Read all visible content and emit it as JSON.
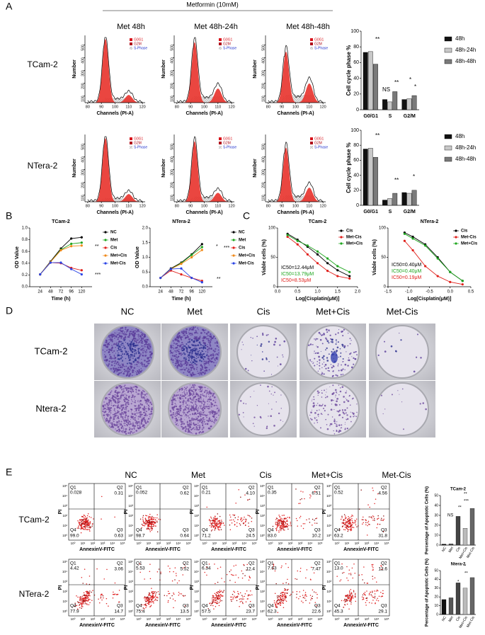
{
  "panel_labels": [
    "A",
    "B",
    "C",
    "D",
    "E"
  ],
  "panel_a": {
    "treatment": "Metformin (10mM)",
    "columns": [
      "Met 48h",
      "Met 48h-24h",
      "Met 48h-48h"
    ],
    "rows": [
      "TCam-2",
      "NTera-2"
    ],
    "histogram": {
      "y_label": "Number",
      "x_label": "Channels (PI-A)",
      "xticks": [
        80,
        90,
        100,
        110,
        120
      ],
      "yticks": [
        100,
        200,
        300,
        400,
        500
      ],
      "legend": [
        {
          "name": "G0G1",
          "color": "#d8141c"
        },
        {
          "name": "G2M",
          "color": "#b0101c"
        },
        {
          "name": "S-Phase",
          "color": "#2233cc"
        }
      ]
    }
  },
  "chart_data": [
    {
      "type": "bar",
      "categories": [
        "G0/G1",
        "S",
        "G2/M"
      ],
      "y_label": "Cell cycle phase %",
      "ylim": [
        0,
        100
      ],
      "yticks": [
        0,
        20,
        40,
        60,
        80,
        100
      ],
      "series": [
        {
          "name": "48h",
          "color": "#111111",
          "values": [
            73,
            13,
            13
          ]
        },
        {
          "name": "48h-24h",
          "color": "#c8c8c8",
          "values": [
            74,
            10,
            14
          ]
        },
        {
          "name": "48h-48h",
          "color": "#7a7a7a",
          "values": [
            58,
            23,
            18
          ]
        }
      ],
      "annotations": [
        {
          "text": "**"
        },
        {
          "text": "NS"
        },
        {
          "text": "**"
        },
        {
          "text": "*"
        },
        {
          "text": "*"
        }
      ]
    },
    {
      "type": "bar",
      "categories": [
        "G0/G1",
        "S",
        "G2/M"
      ],
      "y_label": "Cell cycle phase %",
      "ylim": [
        0,
        100
      ],
      "yticks": [
        0,
        20,
        40,
        60,
        80,
        100
      ],
      "series": [
        {
          "name": "48h",
          "color": "#111111",
          "values": [
            75,
            7,
            17
          ]
        },
        {
          "name": "48h-24h",
          "color": "#c8c8c8",
          "values": [
            76,
            9,
            16
          ]
        },
        {
          "name": "48h-48h",
          "color": "#7a7a7a",
          "values": [
            64,
            16,
            20
          ]
        }
      ],
      "annotations": [
        {
          "text": "**"
        },
        {
          "text": "**"
        },
        {
          "text": "*"
        }
      ]
    },
    {
      "type": "line",
      "title": "TCam-2",
      "x_label": "Time (h)",
      "y_label": "OD Value",
      "x": [
        24,
        48,
        72,
        96,
        120
      ],
      "xlim": [
        0,
        144
      ],
      "xticks": [
        24,
        48,
        72,
        96,
        120
      ],
      "ylim": [
        0,
        1
      ],
      "yticks": [
        {
          "value": 0,
          "label": "0.0"
        },
        0.2,
        0.4,
        0.6,
        0.8,
        {
          "value": 1,
          "label": "1.0"
        }
      ],
      "series": [
        {
          "name": "NC",
          "color": "#000000",
          "values": [
            0.21,
            0.43,
            0.65,
            0.82,
            0.84
          ]
        },
        {
          "name": "Met",
          "color": "#1fa61f",
          "values": [
            0.21,
            0.42,
            0.63,
            0.73,
            0.75
          ]
        },
        {
          "name": "Cis",
          "color": "#e0201b",
          "values": [
            0.21,
            0.41,
            0.4,
            0.32,
            0.28
          ]
        },
        {
          "name": "Met+Cis",
          "color": "#f08a1a",
          "values": [
            0.21,
            0.42,
            0.62,
            0.69,
            0.7
          ]
        },
        {
          "name": "Met-Cis",
          "color": "#2a44e6",
          "values": [
            0.21,
            0.41,
            0.41,
            0.3,
            0.21
          ]
        }
      ],
      "annotations": [
        {
          "text": "**"
        },
        {
          "text": "***"
        }
      ]
    },
    {
      "type": "line",
      "title": "NTera-2",
      "x_label": "Time (h)",
      "y_label": "OD Value",
      "x": [
        24,
        48,
        72,
        96,
        120
      ],
      "xlim": [
        0,
        144
      ],
      "xticks": [
        24,
        48,
        72,
        96,
        120
      ],
      "ylim": [
        0,
        2
      ],
      "yticks": [
        {
          "value": 0,
          "label": "0.0"
        },
        0.5,
        {
          "value": 1,
          "label": "1.0"
        },
        1.5,
        {
          "value": 2,
          "label": "2.0"
        }
      ],
      "series": [
        {
          "name": "NC",
          "color": "#000000",
          "values": [
            0.3,
            0.62,
            0.82,
            1.1,
            1.45
          ]
        },
        {
          "name": "Met",
          "color": "#1fa61f",
          "values": [
            0.3,
            0.6,
            0.8,
            1.08,
            1.35
          ]
        },
        {
          "name": "Cis",
          "color": "#e0201b",
          "values": [
            0.3,
            0.55,
            0.42,
            0.3,
            0.2
          ]
        },
        {
          "name": "Met+Cis",
          "color": "#f08a1a",
          "values": [
            0.3,
            0.6,
            0.78,
            1.0,
            1.25
          ]
        },
        {
          "name": "Met-Cis",
          "color": "#2a44e6",
          "values": [
            0.3,
            0.6,
            0.62,
            0.3,
            0.15
          ]
        }
      ],
      "annotations": [
        {
          "text": "*"
        },
        {
          "text": "***"
        },
        {
          "text": "**"
        }
      ]
    },
    {
      "type": "line",
      "title": "TCam-2",
      "x_label": "Log[Cisplatin(μM)]",
      "y_label": "Viable cells (%)",
      "x": [
        0.25,
        0.5,
        0.75,
        1.0,
        1.25,
        1.5,
        1.8
      ],
      "xlim": [
        0,
        2
      ],
      "xticks": [
        {
          "value": 0,
          "label": "0.0"
        },
        0.5,
        {
          "value": 1,
          "label": "1.0"
        },
        1.5,
        {
          "value": 2,
          "label": "2.0"
        }
      ],
      "ylim": [
        0,
        100
      ],
      "yticks": [
        0,
        50,
        100
      ],
      "series": [
        {
          "name": "Cis",
          "color": "#000000",
          "values": [
            90,
            80,
            68,
            55,
            40,
            28,
            18
          ]
        },
        {
          "name": "Met-Cis",
          "color": "#e0201b",
          "values": [
            85,
            72,
            55,
            40,
            27,
            18,
            14
          ]
        },
        {
          "name": "Met+Cis",
          "color": "#1fa61f",
          "values": [
            88,
            78,
            70,
            60,
            48,
            35,
            25
          ]
        }
      ],
      "annotations": [
        {
          "text": "IC50=12.44μM",
          "color": "#000000"
        },
        {
          "text": "IC50=13.79μM",
          "color": "#1fa61f"
        },
        {
          "text": "IC50=8.53μM",
          "color": "#e0201b"
        }
      ]
    },
    {
      "type": "line",
      "title": "NTera-2",
      "x_label": "Log[Cisplatin(μM)]",
      "y_label": "Viable cells (%)",
      "x": [
        -1.1,
        -0.9,
        -0.6,
        -0.3,
        0,
        0.3
      ],
      "xlim": [
        -1.5,
        0.5
      ],
      "xticks": [
        -1.5,
        {
          "value": -1,
          "label": "-1.0"
        },
        -0.5,
        {
          "value": 0,
          "label": "0.0"
        },
        0.5
      ],
      "ylim": [
        0,
        100
      ],
      "yticks": [
        0,
        50,
        100
      ],
      "series": [
        {
          "name": "Cis",
          "color": "#000000",
          "values": [
            92,
            85,
            72,
            50,
            25,
            10
          ]
        },
        {
          "name": "Met-Cis",
          "color": "#e0201b",
          "values": [
            78,
            62,
            35,
            18,
            8,
            4
          ]
        },
        {
          "name": "Met+Cis",
          "color": "#1fa61f",
          "values": [
            90,
            82,
            70,
            48,
            25,
            10
          ]
        }
      ],
      "annotations": [
        {
          "text": "IC50=0.40μM",
          "color": "#000000"
        },
        {
          "text": "IC50=0.40μM",
          "color": "#1fa61f"
        },
        {
          "text": "IC50=0.19μM",
          "color": "#e0201b"
        }
      ]
    },
    {
      "type": "bar",
      "title": "TCam-2",
      "y_label": "Percentage of Apoptotic Cells (%)",
      "categories": [
        "NC",
        "Met",
        "Cis",
        "Met+Cis",
        "Met-Cis"
      ],
      "values": [
        1,
        1.3,
        29,
        17,
        37
      ],
      "colors": [
        "#111111",
        "#555555",
        "#444444",
        "#bbbbbb",
        "#666666"
      ],
      "ylim": [
        0,
        50
      ],
      "yticks": [
        0,
        10,
        20,
        30,
        40,
        50
      ],
      "annotations": [
        {
          "text": "**"
        },
        {
          "text": "***"
        },
        {
          "text": "**"
        },
        {
          "text": "NS"
        }
      ]
    },
    {
      "type": "bar",
      "title": "Ntera-2",
      "y_label": "Percentage of Apoptotic Cells (%)",
      "categories": [
        "NC",
        "Met",
        "Cis",
        "Met+Cis",
        "Met-Cis"
      ],
      "values": [
        17,
        19,
        36,
        30,
        42
      ],
      "colors": [
        "#111111",
        "#555555",
        "#444444",
        "#bbbbbb",
        "#666666"
      ],
      "ylim": [
        0,
        50
      ],
      "yticks": [
        0,
        10,
        20,
        30,
        40,
        50
      ],
      "annotations": [
        {
          "text": "*"
        },
        {
          "text": "**"
        },
        {
          "text": "*"
        }
      ]
    }
  ],
  "panel_d": {
    "columns": [
      "NC",
      "Met",
      "Cis",
      "Met+Cis",
      "Met-Cis"
    ],
    "rows": [
      "TCam-2",
      "Ntera-2"
    ]
  },
  "panel_e": {
    "columns": [
      "NC",
      "Met",
      "Cis",
      "Met+Cis",
      "Met-Cis"
    ],
    "rows": [
      "TCam-2",
      "NTera-2"
    ],
    "x_label": "AnnexinV-FITC",
    "y_label": "PI",
    "axis_ticks": [
      "10⁰",
      "10¹",
      "10²",
      "10³",
      "10⁴",
      "10⁵"
    ],
    "quadrant_names": [
      "Q1",
      "Q2",
      "Q3",
      "Q4"
    ],
    "quadrants": [
      [
        [
          "0.028",
          "0.31",
          "0.63",
          "99.0"
        ],
        [
          "0.052",
          "0.62",
          "0.64",
          "98.7"
        ],
        [
          "0.21",
          "4.10",
          "24.5",
          "71.2"
        ],
        [
          "0.35",
          "6.51",
          "10.2",
          "83.0"
        ],
        [
          "0.52",
          "4.56",
          "31.8",
          "63.2"
        ]
      ],
      [
        [
          "4.42",
          "3.06",
          "14.7",
          "77.9"
        ],
        [
          "5.53",
          "5.52",
          "13.5",
          "75.4"
        ],
        [
          "6.34",
          "12.4",
          "23.7",
          "57.5"
        ],
        [
          "7.63",
          "7.47",
          "22.6",
          "62.3"
        ],
        [
          "13.0",
          "12.6",
          "29.1",
          "45.3"
        ]
      ]
    ]
  }
}
